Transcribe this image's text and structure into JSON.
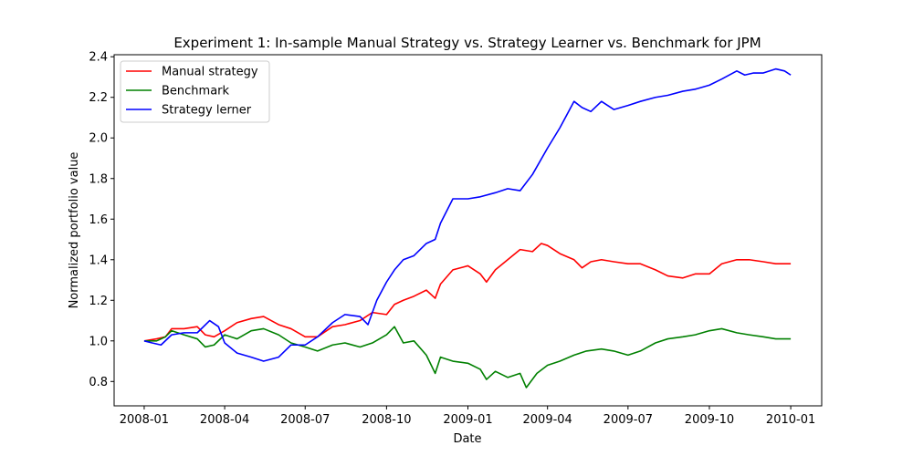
{
  "chart_data": {
    "type": "line",
    "title": "Experiment 1: In-sample Manual Strategy vs. Strategy Learner vs. Benchmark for JPM",
    "xlabel": "Date",
    "ylabel": "Normalized portfolio value",
    "xlim": [
      "2007-11-28",
      "2010-02-05"
    ],
    "ylim": [
      0.68,
      2.41
    ],
    "x_ticks": [
      "2008-01-01",
      "2008-04-01",
      "2008-07-01",
      "2008-10-01",
      "2009-01-01",
      "2009-04-01",
      "2009-07-01",
      "2009-10-01",
      "2010-01-01"
    ],
    "x_tick_labels": [
      "2008-01",
      "2008-04",
      "2008-07",
      "2008-10",
      "2009-01",
      "2009-04",
      "2009-07",
      "2009-10",
      "2010-01"
    ],
    "y_ticks": [
      0.8,
      1.0,
      1.2,
      1.4,
      1.6,
      1.8,
      2.0,
      2.2,
      2.4
    ],
    "y_tick_labels": [
      "0.8",
      "1.0",
      "1.2",
      "1.4",
      "1.6",
      "1.8",
      "2.0",
      "2.2",
      "2.4"
    ],
    "grid": false,
    "legend_position": "top-left",
    "series": [
      {
        "name": "Manual strategy",
        "color": "#ff0000",
        "points": [
          [
            "2008-01-01",
            1.0
          ],
          [
            "2008-01-15",
            1.01
          ],
          [
            "2008-01-25",
            1.02
          ],
          [
            "2008-02-01",
            1.06
          ],
          [
            "2008-02-15",
            1.06
          ],
          [
            "2008-03-01",
            1.07
          ],
          [
            "2008-03-10",
            1.03
          ],
          [
            "2008-03-20",
            1.02
          ],
          [
            "2008-04-01",
            1.05
          ],
          [
            "2008-04-15",
            1.09
          ],
          [
            "2008-05-01",
            1.11
          ],
          [
            "2008-05-15",
            1.12
          ],
          [
            "2008-06-01",
            1.08
          ],
          [
            "2008-06-15",
            1.06
          ],
          [
            "2008-07-01",
            1.02
          ],
          [
            "2008-07-15",
            1.02
          ],
          [
            "2008-08-01",
            1.07
          ],
          [
            "2008-08-15",
            1.08
          ],
          [
            "2008-09-01",
            1.1
          ],
          [
            "2008-09-15",
            1.14
          ],
          [
            "2008-10-01",
            1.13
          ],
          [
            "2008-10-10",
            1.18
          ],
          [
            "2008-10-20",
            1.2
          ],
          [
            "2008-11-01",
            1.22
          ],
          [
            "2008-11-15",
            1.25
          ],
          [
            "2008-11-25",
            1.21
          ],
          [
            "2008-12-01",
            1.28
          ],
          [
            "2008-12-15",
            1.35
          ],
          [
            "2009-01-01",
            1.37
          ],
          [
            "2009-01-15",
            1.33
          ],
          [
            "2009-01-22",
            1.29
          ],
          [
            "2009-02-01",
            1.35
          ],
          [
            "2009-02-15",
            1.4
          ],
          [
            "2009-03-01",
            1.45
          ],
          [
            "2009-03-15",
            1.44
          ],
          [
            "2009-03-25",
            1.48
          ],
          [
            "2009-04-01",
            1.47
          ],
          [
            "2009-04-15",
            1.43
          ],
          [
            "2009-05-01",
            1.4
          ],
          [
            "2009-05-10",
            1.36
          ],
          [
            "2009-05-20",
            1.39
          ],
          [
            "2009-06-01",
            1.4
          ],
          [
            "2009-06-15",
            1.39
          ],
          [
            "2009-07-01",
            1.38
          ],
          [
            "2009-07-15",
            1.38
          ],
          [
            "2009-08-01",
            1.35
          ],
          [
            "2009-08-15",
            1.32
          ],
          [
            "2009-09-01",
            1.31
          ],
          [
            "2009-09-15",
            1.33
          ],
          [
            "2009-10-01",
            1.33
          ],
          [
            "2009-10-15",
            1.38
          ],
          [
            "2009-11-01",
            1.4
          ],
          [
            "2009-11-15",
            1.4
          ],
          [
            "2009-12-01",
            1.39
          ],
          [
            "2009-12-15",
            1.38
          ],
          [
            "2010-01-01",
            1.38
          ]
        ]
      },
      {
        "name": "Benchmark",
        "color": "#008000",
        "points": [
          [
            "2008-01-01",
            1.0
          ],
          [
            "2008-01-15",
            1.0
          ],
          [
            "2008-01-25",
            1.02
          ],
          [
            "2008-02-01",
            1.05
          ],
          [
            "2008-02-15",
            1.03
          ],
          [
            "2008-03-01",
            1.01
          ],
          [
            "2008-03-10",
            0.97
          ],
          [
            "2008-03-20",
            0.98
          ],
          [
            "2008-04-01",
            1.03
          ],
          [
            "2008-04-15",
            1.01
          ],
          [
            "2008-05-01",
            1.05
          ],
          [
            "2008-05-15",
            1.06
          ],
          [
            "2008-06-01",
            1.03
          ],
          [
            "2008-06-15",
            0.99
          ],
          [
            "2008-07-01",
            0.97
          ],
          [
            "2008-07-15",
            0.95
          ],
          [
            "2008-08-01",
            0.98
          ],
          [
            "2008-08-15",
            0.99
          ],
          [
            "2008-09-01",
            0.97
          ],
          [
            "2008-09-15",
            0.99
          ],
          [
            "2008-10-01",
            1.03
          ],
          [
            "2008-10-10",
            1.07
          ],
          [
            "2008-10-20",
            0.99
          ],
          [
            "2008-11-01",
            1.0
          ],
          [
            "2008-11-15",
            0.93
          ],
          [
            "2008-11-25",
            0.84
          ],
          [
            "2008-12-01",
            0.92
          ],
          [
            "2008-12-15",
            0.9
          ],
          [
            "2009-01-01",
            0.89
          ],
          [
            "2009-01-15",
            0.86
          ],
          [
            "2009-01-22",
            0.81
          ],
          [
            "2009-02-01",
            0.85
          ],
          [
            "2009-02-15",
            0.82
          ],
          [
            "2009-03-01",
            0.84
          ],
          [
            "2009-03-08",
            0.77
          ],
          [
            "2009-03-20",
            0.84
          ],
          [
            "2009-04-01",
            0.88
          ],
          [
            "2009-04-15",
            0.9
          ],
          [
            "2009-05-01",
            0.93
          ],
          [
            "2009-05-15",
            0.95
          ],
          [
            "2009-06-01",
            0.96
          ],
          [
            "2009-06-15",
            0.95
          ],
          [
            "2009-07-01",
            0.93
          ],
          [
            "2009-07-15",
            0.95
          ],
          [
            "2009-08-01",
            0.99
          ],
          [
            "2009-08-15",
            1.01
          ],
          [
            "2009-09-01",
            1.02
          ],
          [
            "2009-09-15",
            1.03
          ],
          [
            "2009-10-01",
            1.05
          ],
          [
            "2009-10-15",
            1.06
          ],
          [
            "2009-11-01",
            1.04
          ],
          [
            "2009-11-15",
            1.03
          ],
          [
            "2009-12-01",
            1.02
          ],
          [
            "2009-12-15",
            1.01
          ],
          [
            "2010-01-01",
            1.01
          ]
        ]
      },
      {
        "name": "Strategy lerner",
        "color": "#0000ff",
        "points": [
          [
            "2008-01-01",
            1.0
          ],
          [
            "2008-01-10",
            0.99
          ],
          [
            "2008-01-20",
            0.98
          ],
          [
            "2008-02-01",
            1.03
          ],
          [
            "2008-02-15",
            1.04
          ],
          [
            "2008-03-01",
            1.04
          ],
          [
            "2008-03-15",
            1.1
          ],
          [
            "2008-03-25",
            1.07
          ],
          [
            "2008-04-01",
            0.99
          ],
          [
            "2008-04-15",
            0.94
          ],
          [
            "2008-05-01",
            0.92
          ],
          [
            "2008-05-15",
            0.9
          ],
          [
            "2008-06-01",
            0.92
          ],
          [
            "2008-06-15",
            0.98
          ],
          [
            "2008-07-01",
            0.98
          ],
          [
            "2008-07-15",
            1.02
          ],
          [
            "2008-08-01",
            1.09
          ],
          [
            "2008-08-15",
            1.13
          ],
          [
            "2008-09-01",
            1.12
          ],
          [
            "2008-09-10",
            1.08
          ],
          [
            "2008-09-20",
            1.2
          ],
          [
            "2008-10-01",
            1.29
          ],
          [
            "2008-10-10",
            1.35
          ],
          [
            "2008-10-20",
            1.4
          ],
          [
            "2008-11-01",
            1.42
          ],
          [
            "2008-11-15",
            1.48
          ],
          [
            "2008-11-25",
            1.5
          ],
          [
            "2008-12-01",
            1.58
          ],
          [
            "2008-12-15",
            1.7
          ],
          [
            "2009-01-01",
            1.7
          ],
          [
            "2009-01-15",
            1.71
          ],
          [
            "2009-02-01",
            1.73
          ],
          [
            "2009-02-15",
            1.75
          ],
          [
            "2009-03-01",
            1.74
          ],
          [
            "2009-03-15",
            1.82
          ],
          [
            "2009-04-01",
            1.95
          ],
          [
            "2009-04-15",
            2.05
          ],
          [
            "2009-05-01",
            2.18
          ],
          [
            "2009-05-10",
            2.15
          ],
          [
            "2009-05-20",
            2.13
          ],
          [
            "2009-06-01",
            2.18
          ],
          [
            "2009-06-15",
            2.14
          ],
          [
            "2009-07-01",
            2.16
          ],
          [
            "2009-07-15",
            2.18
          ],
          [
            "2009-08-01",
            2.2
          ],
          [
            "2009-08-15",
            2.21
          ],
          [
            "2009-09-01",
            2.23
          ],
          [
            "2009-09-15",
            2.24
          ],
          [
            "2009-10-01",
            2.26
          ],
          [
            "2009-10-15",
            2.29
          ],
          [
            "2009-11-01",
            2.33
          ],
          [
            "2009-11-10",
            2.31
          ],
          [
            "2009-11-20",
            2.32
          ],
          [
            "2009-12-01",
            2.32
          ],
          [
            "2009-12-15",
            2.34
          ],
          [
            "2009-12-25",
            2.33
          ],
          [
            "2010-01-01",
            2.31
          ]
        ]
      }
    ]
  }
}
